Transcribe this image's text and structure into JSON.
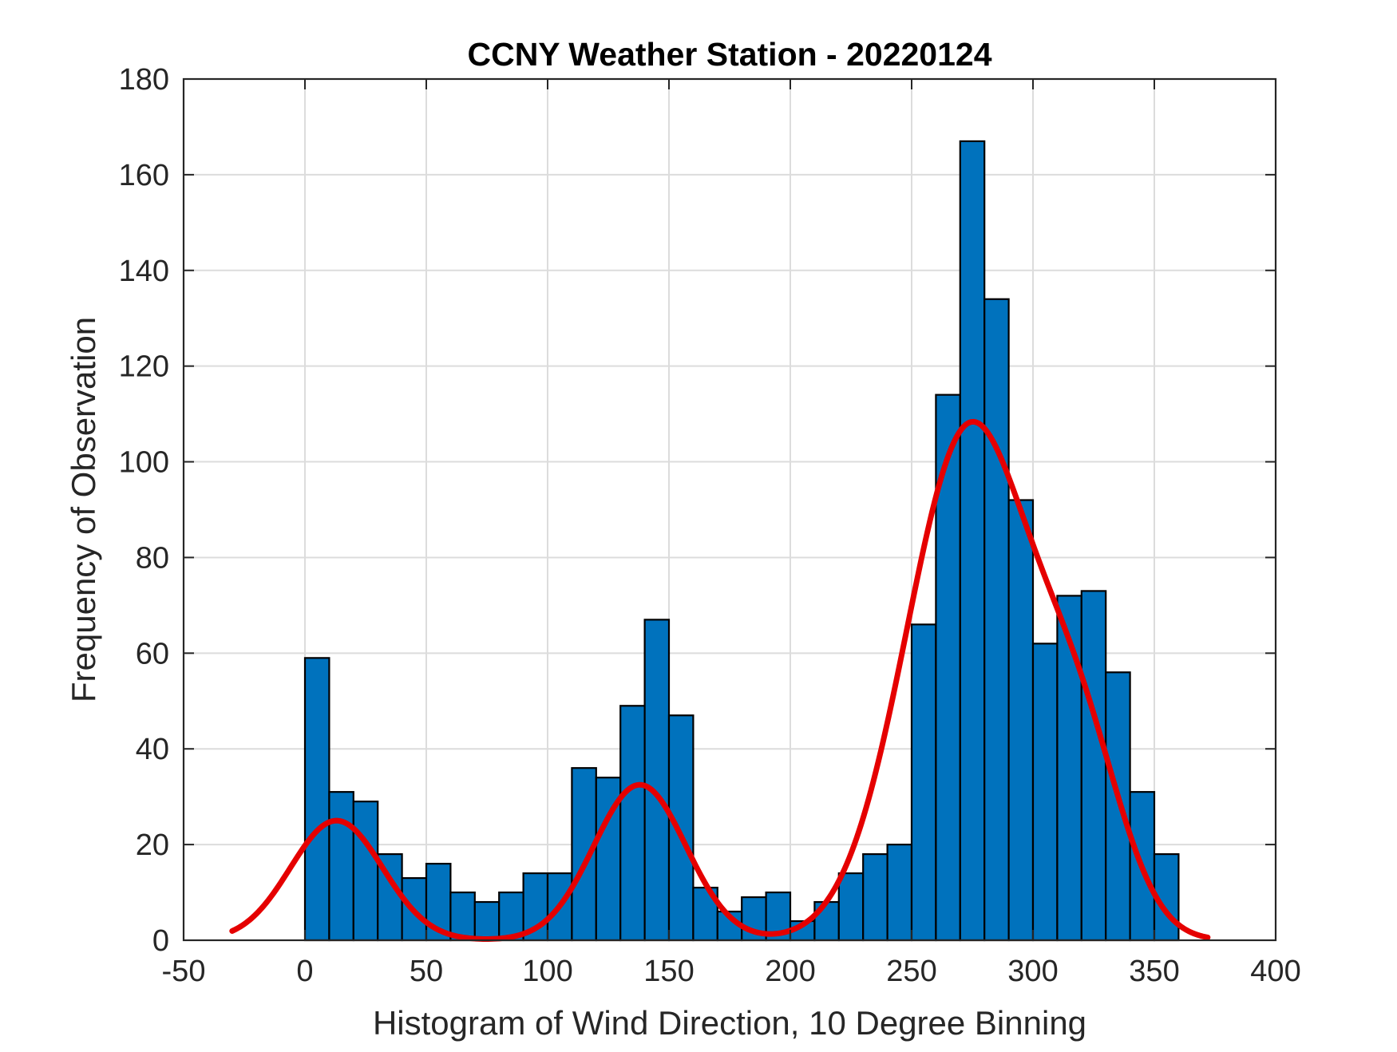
{
  "chart_data": {
    "type": "bar",
    "title": "CCNY Weather Station - 20220124",
    "xlabel": "Histogram of Wind Direction, 10 Degree Binning",
    "ylabel": "Frequency of Observation",
    "xlim": [
      -50,
      400
    ],
    "ylim": [
      0,
      180
    ],
    "x_ticks": [
      -50,
      0,
      50,
      100,
      150,
      200,
      250,
      300,
      350,
      400
    ],
    "y_ticks": [
      0,
      20,
      40,
      60,
      80,
      100,
      120,
      140,
      160,
      180
    ],
    "x_tick_labels": [
      "-50",
      "0",
      "50",
      "100",
      "150",
      "200",
      "250",
      "300",
      "350",
      "400"
    ],
    "y_tick_labels": [
      "0",
      "20",
      "40",
      "60",
      "80",
      "100",
      "120",
      "140",
      "160",
      "180"
    ],
    "grid": true,
    "bin_width": 10,
    "bins": [
      {
        "start": 0,
        "end": 10,
        "count": 59
      },
      {
        "start": 10,
        "end": 20,
        "count": 31
      },
      {
        "start": 20,
        "end": 30,
        "count": 29
      },
      {
        "start": 30,
        "end": 40,
        "count": 18
      },
      {
        "start": 40,
        "end": 50,
        "count": 13
      },
      {
        "start": 50,
        "end": 60,
        "count": 16
      },
      {
        "start": 60,
        "end": 70,
        "count": 10
      },
      {
        "start": 70,
        "end": 80,
        "count": 8
      },
      {
        "start": 80,
        "end": 90,
        "count": 10
      },
      {
        "start": 90,
        "end": 100,
        "count": 14
      },
      {
        "start": 100,
        "end": 110,
        "count": 14
      },
      {
        "start": 110,
        "end": 120,
        "count": 36
      },
      {
        "start": 120,
        "end": 130,
        "count": 34
      },
      {
        "start": 130,
        "end": 140,
        "count": 49
      },
      {
        "start": 140,
        "end": 150,
        "count": 67
      },
      {
        "start": 150,
        "end": 160,
        "count": 47
      },
      {
        "start": 160,
        "end": 170,
        "count": 11
      },
      {
        "start": 170,
        "end": 180,
        "count": 6
      },
      {
        "start": 180,
        "end": 190,
        "count": 9
      },
      {
        "start": 190,
        "end": 200,
        "count": 10
      },
      {
        "start": 200,
        "end": 210,
        "count": 4
      },
      {
        "start": 210,
        "end": 220,
        "count": 8
      },
      {
        "start": 220,
        "end": 230,
        "count": 14
      },
      {
        "start": 230,
        "end": 240,
        "count": 18
      },
      {
        "start": 240,
        "end": 250,
        "count": 20
      },
      {
        "start": 250,
        "end": 260,
        "count": 66
      },
      {
        "start": 260,
        "end": 270,
        "count": 114
      },
      {
        "start": 270,
        "end": 280,
        "count": 167
      },
      {
        "start": 280,
        "end": 290,
        "count": 134
      },
      {
        "start": 290,
        "end": 300,
        "count": 92
      },
      {
        "start": 300,
        "end": 310,
        "count": 62
      },
      {
        "start": 310,
        "end": 320,
        "count": 72
      },
      {
        "start": 320,
        "end": 330,
        "count": 73
      },
      {
        "start": 330,
        "end": 340,
        "count": 56
      },
      {
        "start": 340,
        "end": 350,
        "count": 31
      },
      {
        "start": 350,
        "end": 360,
        "count": 18
      }
    ],
    "fit_curve": {
      "type": "gaussian_mixture",
      "x_range": [
        -30,
        372
      ],
      "components": [
        {
          "amplitude": 25,
          "mean": 13,
          "sigma": 19
        },
        {
          "amplitude": 32.5,
          "mean": 138,
          "sigma": 19
        },
        {
          "amplitude": 107,
          "mean": 274,
          "sigma": 26
        },
        {
          "amplitude": 33,
          "mean": 320,
          "sigma": 18
        }
      ],
      "baseline": 0
    },
    "colors": {
      "bar_fill": "#0072BD",
      "bar_edge": "#000000",
      "fit_line": "#E50000",
      "grid": "#DCDCDC",
      "axes": "#262626"
    }
  }
}
